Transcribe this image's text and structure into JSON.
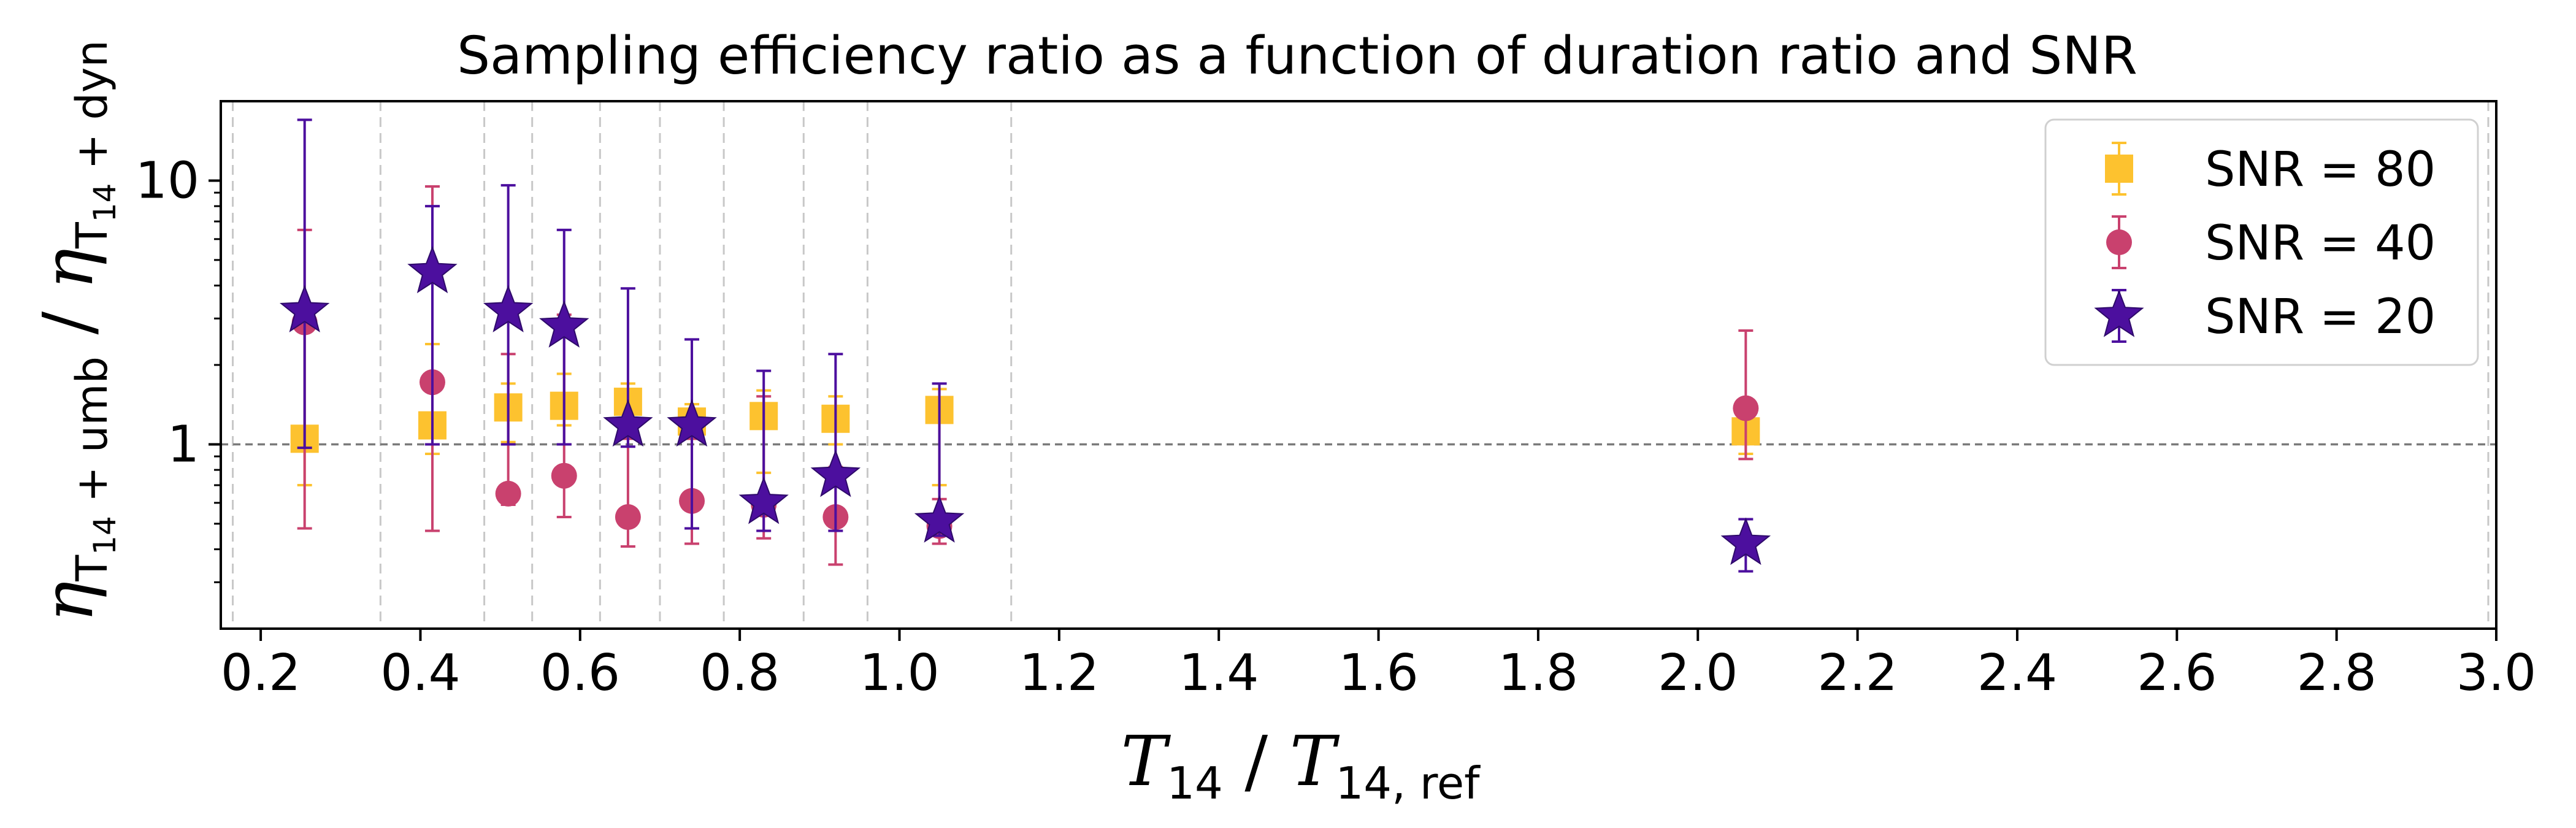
{
  "chart_data": {
    "type": "scatter",
    "title": "Sampling efficiency ratio as a function of duration ratio and SNR",
    "xlabel": {
      "main": "T",
      "sub1": "14",
      "sep": " / ",
      "main2": "T",
      "sub2": "14, ref"
    },
    "ylabel": {
      "main": "η",
      "sub1": "T",
      "sub1b": "14",
      "sub1c": " + umb",
      "sep": " / ",
      "main2": "η",
      "sub2": "T",
      "sub2b": "14",
      "sub2c": " + dyn"
    },
    "xlim": [
      0.15,
      3.0
    ],
    "ylim": [
      0.2,
      20
    ],
    "yscale": "log",
    "xticks": [
      0.2,
      0.4,
      0.6,
      0.8,
      1.0,
      1.2,
      1.4,
      1.6,
      1.8,
      2.0,
      2.2,
      2.4,
      2.6,
      2.8,
      3.0
    ],
    "xtick_labels": [
      "0.2",
      "0.4",
      "0.6",
      "0.8",
      "1.0",
      "1.2",
      "1.4",
      "1.6",
      "1.8",
      "2.0",
      "2.2",
      "2.4",
      "2.6",
      "2.8",
      "3.0"
    ],
    "yticks": [
      1,
      10
    ],
    "ytick_labels": [
      "1",
      "10"
    ],
    "reference_line_y": 1,
    "vertical_gridlines_x": [
      0.165,
      0.35,
      0.48,
      0.54,
      0.625,
      0.7,
      0.78,
      0.88,
      0.96,
      1.14,
      2.99
    ],
    "legend_position": "top-right",
    "series": [
      {
        "name": "SNR = 80",
        "marker": "square",
        "color": "#FDC22F",
        "points": [
          {
            "x": 0.255,
            "y": 1.05,
            "lo": 0.7,
            "hi": 3.2
          },
          {
            "x": 0.415,
            "y": 1.18,
            "lo": 0.92,
            "hi": 2.4
          },
          {
            "x": 0.51,
            "y": 1.38,
            "lo": 1.02,
            "hi": 1.7
          },
          {
            "x": 0.58,
            "y": 1.4,
            "lo": 1.18,
            "hi": 1.85
          },
          {
            "x": 0.66,
            "y": 1.45,
            "lo": 1.2,
            "hi": 1.7
          },
          {
            "x": 0.74,
            "y": 1.22,
            "lo": 1.05,
            "hi": 1.42
          },
          {
            "x": 0.83,
            "y": 1.28,
            "lo": 0.78,
            "hi": 1.6
          },
          {
            "x": 0.92,
            "y": 1.25,
            "lo": 1.0,
            "hi": 1.52
          },
          {
            "x": 1.05,
            "y": 1.35,
            "lo": 0.7,
            "hi": 1.62
          },
          {
            "x": 2.06,
            "y": 1.12,
            "lo": 0.92,
            "hi": 1.48
          }
        ]
      },
      {
        "name": "SNR = 40",
        "marker": "circle",
        "color": "#C9416E",
        "points": [
          {
            "x": 0.255,
            "y": 2.9,
            "lo": 0.48,
            "hi": 6.5
          },
          {
            "x": 0.415,
            "y": 1.72,
            "lo": 0.47,
            "hi": 9.5
          },
          {
            "x": 0.51,
            "y": 0.65,
            "lo": 0.59,
            "hi": 2.2
          },
          {
            "x": 0.58,
            "y": 0.76,
            "lo": 0.53,
            "hi": 3.1
          },
          {
            "x": 0.66,
            "y": 0.53,
            "lo": 0.41,
            "hi": 1.05
          },
          {
            "x": 0.74,
            "y": 0.61,
            "lo": 0.42,
            "hi": 1.05
          },
          {
            "x": 0.83,
            "y": 0.59,
            "lo": 0.44,
            "hi": 1.52
          },
          {
            "x": 0.92,
            "y": 0.53,
            "lo": 0.35,
            "hi": 0.82
          },
          {
            "x": 1.05,
            "y": 0.49,
            "lo": 0.42,
            "hi": 0.62
          },
          {
            "x": 2.06,
            "y": 1.37,
            "lo": 0.88,
            "hi": 2.7
          }
        ]
      },
      {
        "name": "SNR = 20",
        "marker": "star",
        "color": "#4C0F9E",
        "points": [
          {
            "x": 0.255,
            "y": 3.2,
            "lo": 0.97,
            "hi": 17.0
          },
          {
            "x": 0.415,
            "y": 4.5,
            "lo": 1.0,
            "hi": 8.0
          },
          {
            "x": 0.51,
            "y": 3.2,
            "lo": 1.0,
            "hi": 9.6
          },
          {
            "x": 0.58,
            "y": 2.8,
            "lo": 1.0,
            "hi": 6.5
          },
          {
            "x": 0.66,
            "y": 1.18,
            "lo": 0.98,
            "hi": 3.9
          },
          {
            "x": 0.74,
            "y": 1.18,
            "lo": 0.48,
            "hi": 2.5
          },
          {
            "x": 0.83,
            "y": 0.6,
            "lo": 0.47,
            "hi": 1.9
          },
          {
            "x": 0.92,
            "y": 0.76,
            "lo": 0.47,
            "hi": 2.2
          },
          {
            "x": 1.05,
            "y": 0.51,
            "lo": 0.45,
            "hi": 1.7
          },
          {
            "x": 2.06,
            "y": 0.42,
            "lo": 0.33,
            "hi": 0.52
          }
        ]
      }
    ]
  }
}
